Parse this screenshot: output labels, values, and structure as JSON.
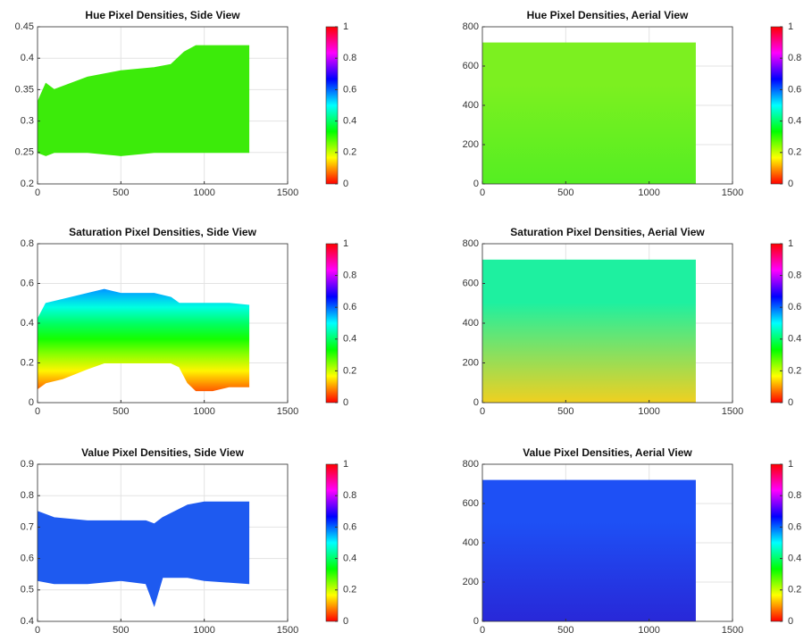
{
  "chart_data": [
    {
      "type": "band",
      "title": "Hue Pixel Densities, Side View",
      "color": "#3ceb0a",
      "x": [
        0,
        50,
        100,
        300,
        500,
        700,
        800,
        880,
        950,
        1100,
        1270
      ],
      "upper": [
        0.33,
        0.36,
        0.35,
        0.37,
        0.38,
        0.385,
        0.39,
        0.41,
        0.42,
        0.42,
        0.42
      ],
      "lower": [
        0.25,
        0.245,
        0.25,
        0.25,
        0.245,
        0.25,
        0.25,
        0.25,
        0.25,
        0.25,
        0.25
      ],
      "xlim": [
        0,
        1500
      ],
      "xticks": [
        0,
        500,
        1000,
        1500
      ],
      "ylim": [
        0.2,
        0.45
      ],
      "yticks": [
        0.2,
        0.25,
        0.3,
        0.35,
        0.4,
        0.45
      ],
      "grid": true,
      "colorbar": {
        "colormap": "hsv",
        "lim": [
          0,
          1
        ],
        "ticks": [
          0,
          0.2,
          0.4,
          0.6,
          0.8,
          1
        ]
      }
    },
    {
      "type": "image",
      "title": "Hue Pixel Densities, Aerial View",
      "colors": [
        "#7cf020",
        "#55ee22"
      ],
      "extent": {
        "x": [
          0,
          1280
        ],
        "y": [
          0,
          720
        ]
      },
      "xlim": [
        0,
        1500
      ],
      "xticks": [
        0,
        500,
        1000,
        1500
      ],
      "ylim": [
        0,
        800
      ],
      "yticks": [
        0,
        200,
        400,
        600,
        800
      ],
      "grid": true,
      "colorbar": {
        "colormap": "hsv",
        "lim": [
          0,
          1
        ],
        "ticks": [
          0,
          0.2,
          0.4,
          0.6,
          0.8,
          1
        ]
      }
    },
    {
      "type": "band",
      "title": "Saturation Pixel Densities, Side View",
      "color_by_value": true,
      "x": [
        0,
        50,
        150,
        300,
        400,
        500,
        700,
        800,
        850,
        900,
        950,
        1050,
        1150,
        1270
      ],
      "upper": [
        0.42,
        0.5,
        0.52,
        0.55,
        0.57,
        0.55,
        0.55,
        0.53,
        0.5,
        0.5,
        0.5,
        0.5,
        0.5,
        0.49
      ],
      "lower": [
        0.07,
        0.1,
        0.12,
        0.17,
        0.2,
        0.2,
        0.2,
        0.2,
        0.18,
        0.1,
        0.06,
        0.06,
        0.08,
        0.08
      ],
      "xlim": [
        0,
        1500
      ],
      "xticks": [
        0,
        500,
        1000,
        1500
      ],
      "ylim": [
        0,
        0.8
      ],
      "yticks": [
        0,
        0.2,
        0.4,
        0.6,
        0.8
      ],
      "grid": true,
      "colorbar": {
        "colormap": "hsv",
        "lim": [
          0,
          1
        ],
        "ticks": [
          0,
          0.2,
          0.4,
          0.6,
          0.8,
          1
        ]
      }
    },
    {
      "type": "image",
      "title": "Saturation Pixel Densities, Aerial View",
      "colors": [
        "#1ef0a0",
        "#f0d020"
      ],
      "extent": {
        "x": [
          0,
          1280
        ],
        "y": [
          0,
          720
        ]
      },
      "xlim": [
        0,
        1500
      ],
      "xticks": [
        0,
        500,
        1000,
        1500
      ],
      "ylim": [
        0,
        800
      ],
      "yticks": [
        0,
        200,
        400,
        600,
        800
      ],
      "grid": true,
      "colorbar": {
        "colormap": "hsv",
        "lim": [
          0,
          1
        ],
        "ticks": [
          0,
          0.2,
          0.4,
          0.6,
          0.8,
          1
        ]
      }
    },
    {
      "type": "band",
      "title": "Value Pixel Densities, Side View",
      "color": "#1e5af0",
      "x": [
        0,
        100,
        300,
        500,
        650,
        700,
        750,
        900,
        1000,
        1270
      ],
      "upper": [
        0.75,
        0.73,
        0.72,
        0.72,
        0.72,
        0.71,
        0.73,
        0.77,
        0.78,
        0.78
      ],
      "lower": [
        0.53,
        0.52,
        0.52,
        0.53,
        0.52,
        0.45,
        0.54,
        0.54,
        0.53,
        0.52
      ],
      "xlim": [
        0,
        1500
      ],
      "xticks": [
        0,
        500,
        1000,
        1500
      ],
      "ylim": [
        0.4,
        0.9
      ],
      "yticks": [
        0.4,
        0.5,
        0.6,
        0.7,
        0.8,
        0.9
      ],
      "grid": true,
      "colorbar": {
        "colormap": "hsv",
        "lim": [
          0,
          1
        ],
        "ticks": [
          0,
          0.2,
          0.4,
          0.6,
          0.8,
          1
        ]
      }
    },
    {
      "type": "image",
      "title": "Value Pixel Densities, Aerial View",
      "colors": [
        "#1e50f5",
        "#2828d8"
      ],
      "extent": {
        "x": [
          0,
          1280
        ],
        "y": [
          0,
          720
        ]
      },
      "xlim": [
        0,
        1500
      ],
      "xticks": [
        0,
        500,
        1000,
        1500
      ],
      "ylim": [
        0,
        800
      ],
      "yticks": [
        0,
        200,
        400,
        600,
        800
      ],
      "grid": true,
      "colorbar": {
        "colormap": "hsv",
        "lim": [
          0,
          1
        ],
        "ticks": [
          0,
          0.2,
          0.4,
          0.6,
          0.8,
          1
        ]
      }
    }
  ]
}
